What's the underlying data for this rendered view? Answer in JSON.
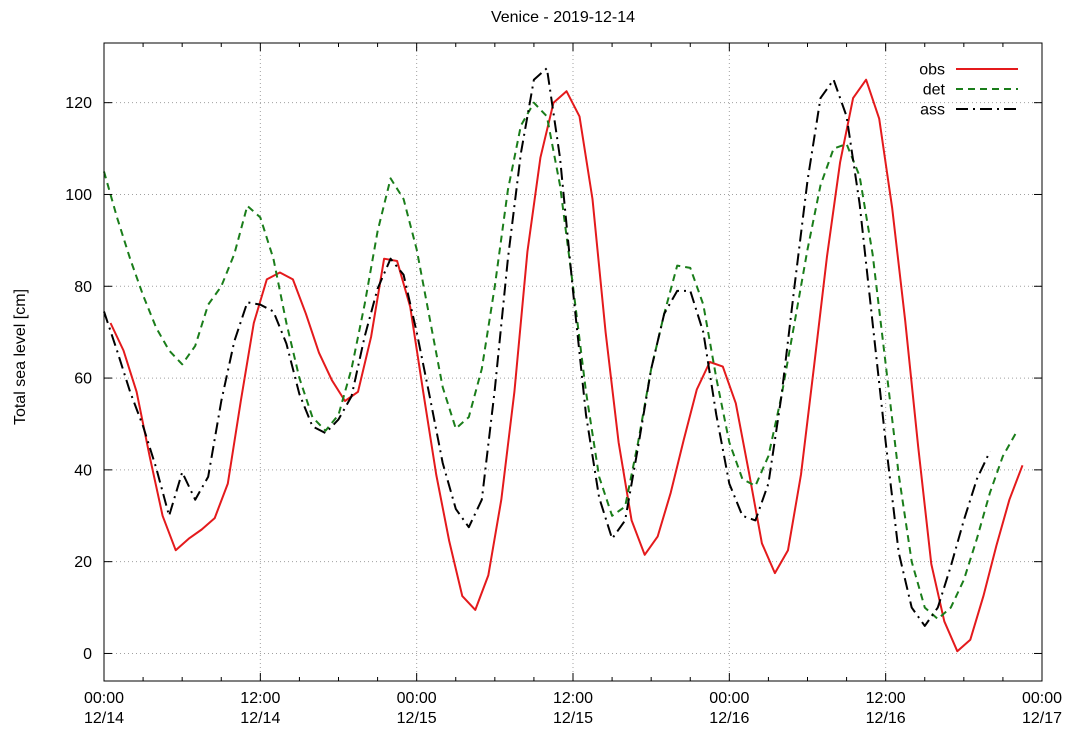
{
  "chart_data": {
    "type": "line",
    "title": "Venice - 2019-12-14",
    "xlabel": "",
    "ylabel": "Total sea level [cm]",
    "xlim": [
      "2019-12-14 00:00",
      "2019-12-17 00:00"
    ],
    "ylim": [
      -6,
      133
    ],
    "yticks": [
      0,
      20,
      40,
      60,
      80,
      100,
      120
    ],
    "xticks": [
      {
        "time": "00:00",
        "date": "12/14"
      },
      {
        "time": "12:00",
        "date": "12/14"
      },
      {
        "time": "00:00",
        "date": "12/15"
      },
      {
        "time": "12:00",
        "date": "12/15"
      },
      {
        "time": "00:00",
        "date": "12/16"
      },
      {
        "time": "12:00",
        "date": "12/16"
      },
      {
        "time": "00:00",
        "date": "12/17"
      }
    ],
    "grid": true,
    "legend_position": "top-right",
    "x_unit": "hours since 2019-12-14 00:00",
    "series": [
      {
        "name": "obs",
        "color": "#e41a1c",
        "dash": "solid",
        "points": [
          [
            0.5,
            72
          ],
          [
            1.5,
            66
          ],
          [
            2.5,
            57
          ],
          [
            3.5,
            43
          ],
          [
            4.5,
            30
          ],
          [
            5.5,
            22.5
          ],
          [
            6.5,
            25
          ],
          [
            7.5,
            27
          ],
          [
            8.5,
            29.5
          ],
          [
            9.5,
            37
          ],
          [
            10.5,
            55
          ],
          [
            11.5,
            72
          ],
          [
            12.5,
            81.5
          ],
          [
            13.5,
            83
          ],
          [
            14.5,
            81.5
          ],
          [
            15.5,
            74
          ],
          [
            16.5,
            65.5
          ],
          [
            17.5,
            59.5
          ],
          [
            18.5,
            55
          ],
          [
            19.5,
            57
          ],
          [
            20.5,
            69
          ],
          [
            21.5,
            86
          ],
          [
            22.5,
            85.5
          ],
          [
            23.5,
            75.5
          ],
          [
            24.5,
            57
          ],
          [
            25.5,
            39
          ],
          [
            26.5,
            24.5
          ],
          [
            27.5,
            12.5
          ],
          [
            28.5,
            9.5
          ],
          [
            29.5,
            17
          ],
          [
            30.5,
            33.5
          ],
          [
            31.5,
            57
          ],
          [
            32.5,
            87.5
          ],
          [
            33.5,
            108
          ],
          [
            34.5,
            120
          ],
          [
            35.5,
            122.5
          ],
          [
            36.5,
            117
          ],
          [
            37.5,
            99
          ],
          [
            38.5,
            70
          ],
          [
            39.5,
            46
          ],
          [
            40.5,
            29
          ],
          [
            41.5,
            21.5
          ],
          [
            42.5,
            25.5
          ],
          [
            43.5,
            35
          ],
          [
            44.5,
            46.5
          ],
          [
            45.5,
            57.5
          ],
          [
            46.5,
            63.5
          ],
          [
            47.5,
            62.5
          ],
          [
            48.5,
            54.5
          ],
          [
            49.5,
            39.5
          ],
          [
            50.5,
            24
          ],
          [
            51.5,
            17.5
          ],
          [
            52.5,
            22.5
          ],
          [
            53.5,
            39
          ],
          [
            54.5,
            62.5
          ],
          [
            55.5,
            86.5
          ],
          [
            56.5,
            107
          ],
          [
            57.5,
            121
          ],
          [
            58.5,
            125
          ],
          [
            59.5,
            116.5
          ],
          [
            60.5,
            97
          ],
          [
            61.5,
            72.5
          ],
          [
            62.5,
            45
          ],
          [
            63.5,
            19.5
          ],
          [
            64.5,
            7
          ],
          [
            65.5,
            0.5
          ],
          [
            66.5,
            3
          ],
          [
            67.5,
            12.5
          ],
          [
            68.5,
            23.5
          ],
          [
            69.5,
            33.5
          ],
          [
            70.5,
            41
          ]
        ]
      },
      {
        "name": "det",
        "color": "#1a7d1a",
        "dash": "dashed",
        "points": [
          [
            0,
            105
          ],
          [
            1,
            95
          ],
          [
            2,
            86
          ],
          [
            3,
            78
          ],
          [
            4,
            71
          ],
          [
            5,
            66
          ],
          [
            6,
            63
          ],
          [
            7,
            67
          ],
          [
            8,
            76
          ],
          [
            9,
            80
          ],
          [
            10,
            87
          ],
          [
            11,
            97.5
          ],
          [
            12,
            95
          ],
          [
            13,
            86
          ],
          [
            14,
            72
          ],
          [
            15,
            60
          ],
          [
            16,
            51.5
          ],
          [
            17,
            48.5
          ],
          [
            18,
            52
          ],
          [
            19,
            62
          ],
          [
            20,
            76
          ],
          [
            21,
            92
          ],
          [
            22,
            103.5
          ],
          [
            23,
            99
          ],
          [
            24,
            88
          ],
          [
            25,
            73
          ],
          [
            26,
            58
          ],
          [
            27,
            49
          ],
          [
            28,
            51.5
          ],
          [
            29,
            62
          ],
          [
            30,
            80
          ],
          [
            31,
            101
          ],
          [
            32,
            115
          ],
          [
            33,
            120
          ],
          [
            34,
            117
          ],
          [
            35,
            102
          ],
          [
            36,
            80
          ],
          [
            37,
            57
          ],
          [
            38,
            38.5
          ],
          [
            39,
            30
          ],
          [
            40,
            32
          ],
          [
            41,
            46
          ],
          [
            42,
            62
          ],
          [
            43,
            74
          ],
          [
            44,
            84.5
          ],
          [
            45,
            84
          ],
          [
            46,
            76
          ],
          [
            47,
            60
          ],
          [
            48,
            46
          ],
          [
            49,
            38
          ],
          [
            50,
            36.5
          ],
          [
            51,
            43
          ],
          [
            52,
            56
          ],
          [
            53,
            72
          ],
          [
            54,
            88
          ],
          [
            55,
            102
          ],
          [
            56,
            110
          ],
          [
            57,
            111
          ],
          [
            58,
            104
          ],
          [
            59,
            87
          ],
          [
            60,
            63
          ],
          [
            61,
            39
          ],
          [
            62,
            20
          ],
          [
            63,
            10
          ],
          [
            64,
            7.5
          ],
          [
            65,
            10
          ],
          [
            66,
            16
          ],
          [
            67,
            25
          ],
          [
            68,
            35
          ],
          [
            69,
            43
          ],
          [
            70,
            48
          ]
        ]
      },
      {
        "name": "ass",
        "color": "#000000",
        "dash": "dashdot",
        "points": [
          [
            0,
            74.5
          ],
          [
            1,
            66
          ],
          [
            2,
            57
          ],
          [
            3,
            49.5
          ],
          [
            4,
            40.5
          ],
          [
            5,
            30
          ],
          [
            6,
            39.5
          ],
          [
            7,
            33.5
          ],
          [
            8,
            38.5
          ],
          [
            9,
            55
          ],
          [
            10,
            68
          ],
          [
            11,
            76.5
          ],
          [
            12,
            76
          ],
          [
            13,
            74.5
          ],
          [
            14,
            67.5
          ],
          [
            15,
            56.5
          ],
          [
            16,
            49.5
          ],
          [
            17,
            48
          ],
          [
            18,
            51
          ],
          [
            19,
            56
          ],
          [
            20,
            69
          ],
          [
            21,
            79.5
          ],
          [
            22,
            86
          ],
          [
            23,
            82.5
          ],
          [
            24,
            70
          ],
          [
            25,
            56
          ],
          [
            26,
            41.5
          ],
          [
            27,
            31.5
          ],
          [
            28,
            27.5
          ],
          [
            29,
            33.5
          ],
          [
            30,
            57.5
          ],
          [
            31,
            86
          ],
          [
            32,
            109
          ],
          [
            33,
            125
          ],
          [
            34,
            127.5
          ],
          [
            35,
            108
          ],
          [
            36,
            79
          ],
          [
            37,
            52
          ],
          [
            38,
            34
          ],
          [
            39,
            25
          ],
          [
            40,
            29
          ],
          [
            41,
            45
          ],
          [
            42,
            62
          ],
          [
            43,
            74
          ],
          [
            44,
            79
          ],
          [
            45,
            79
          ],
          [
            46,
            70
          ],
          [
            47,
            52
          ],
          [
            48,
            37
          ],
          [
            49,
            30
          ],
          [
            50,
            29
          ],
          [
            51,
            37
          ],
          [
            52,
            56
          ],
          [
            53,
            80
          ],
          [
            54,
            103
          ],
          [
            55,
            121
          ],
          [
            56,
            125
          ],
          [
            57,
            117
          ],
          [
            58,
            98
          ],
          [
            59,
            72
          ],
          [
            60,
            46
          ],
          [
            61,
            22
          ],
          [
            62,
            10
          ],
          [
            63,
            6
          ],
          [
            64,
            10
          ],
          [
            65,
            19
          ],
          [
            66,
            29
          ],
          [
            67,
            38
          ],
          [
            68,
            44
          ]
        ]
      }
    ]
  }
}
